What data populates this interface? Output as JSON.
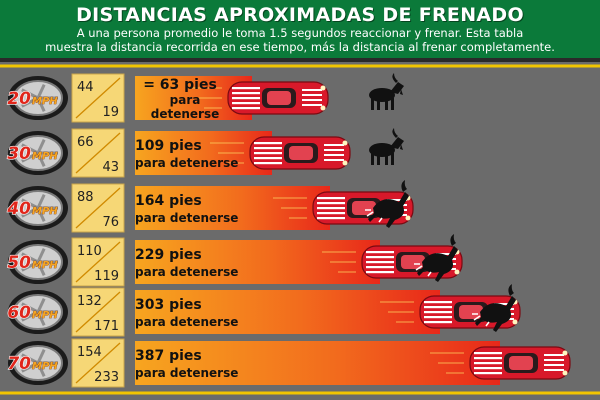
{
  "header": {
    "title": "DISTANCIAS APROXIMADAS DE FRENADO",
    "subtitle_line1": "A una persona promedio le toma 1.5 segundos reaccionar y frenar. Esta tabla",
    "subtitle_line2": "muestra la distancia recorrida en ese tiempo, más la distancia al frenar completamente."
  },
  "rows": [
    {
      "speed": "20",
      "unit": "MPH",
      "reaction": "44",
      "braking": "19",
      "total_number": "= 63 pies",
      "total_rest": "para detenerse",
      "stack": true,
      "animal_state": "standing"
    },
    {
      "speed": "30",
      "unit": "MPH",
      "reaction": "66",
      "braking": "43",
      "total_number": "109 pies",
      "total_rest": "para detenerse",
      "stack": false,
      "animal_state": "standing"
    },
    {
      "speed": "40",
      "unit": "MPH",
      "reaction": "88",
      "braking": "76",
      "total_number": "164 pies",
      "total_rest": "para detenerse",
      "stack": false,
      "animal_state": "hit"
    },
    {
      "speed": "50",
      "unit": "MPH",
      "reaction": "110",
      "braking": "119",
      "total_number": "229 pies",
      "total_rest": "para detenerse",
      "stack": false,
      "animal_state": "hit"
    },
    {
      "speed": "60",
      "unit": "MPH",
      "reaction": "132",
      "braking": "171",
      "total_number": "303 pies",
      "total_rest": "para detenerse",
      "stack": false,
      "animal_state": "hit"
    },
    {
      "speed": "70",
      "unit": "MPH",
      "reaction": "154",
      "braking": "233",
      "total_number": "387 pies",
      "total_rest": "para detenerse",
      "stack": false,
      "animal_state": "none"
    }
  ],
  "colors": {
    "header_green": "#0b7a3a",
    "road": "#6b6b6b",
    "lane_yellow": "#f2c500",
    "speed_red": "#e0261b",
    "reaction_box": "#f6d776",
    "total_box": "#f39a24",
    "car_red": "#d8192a"
  }
}
